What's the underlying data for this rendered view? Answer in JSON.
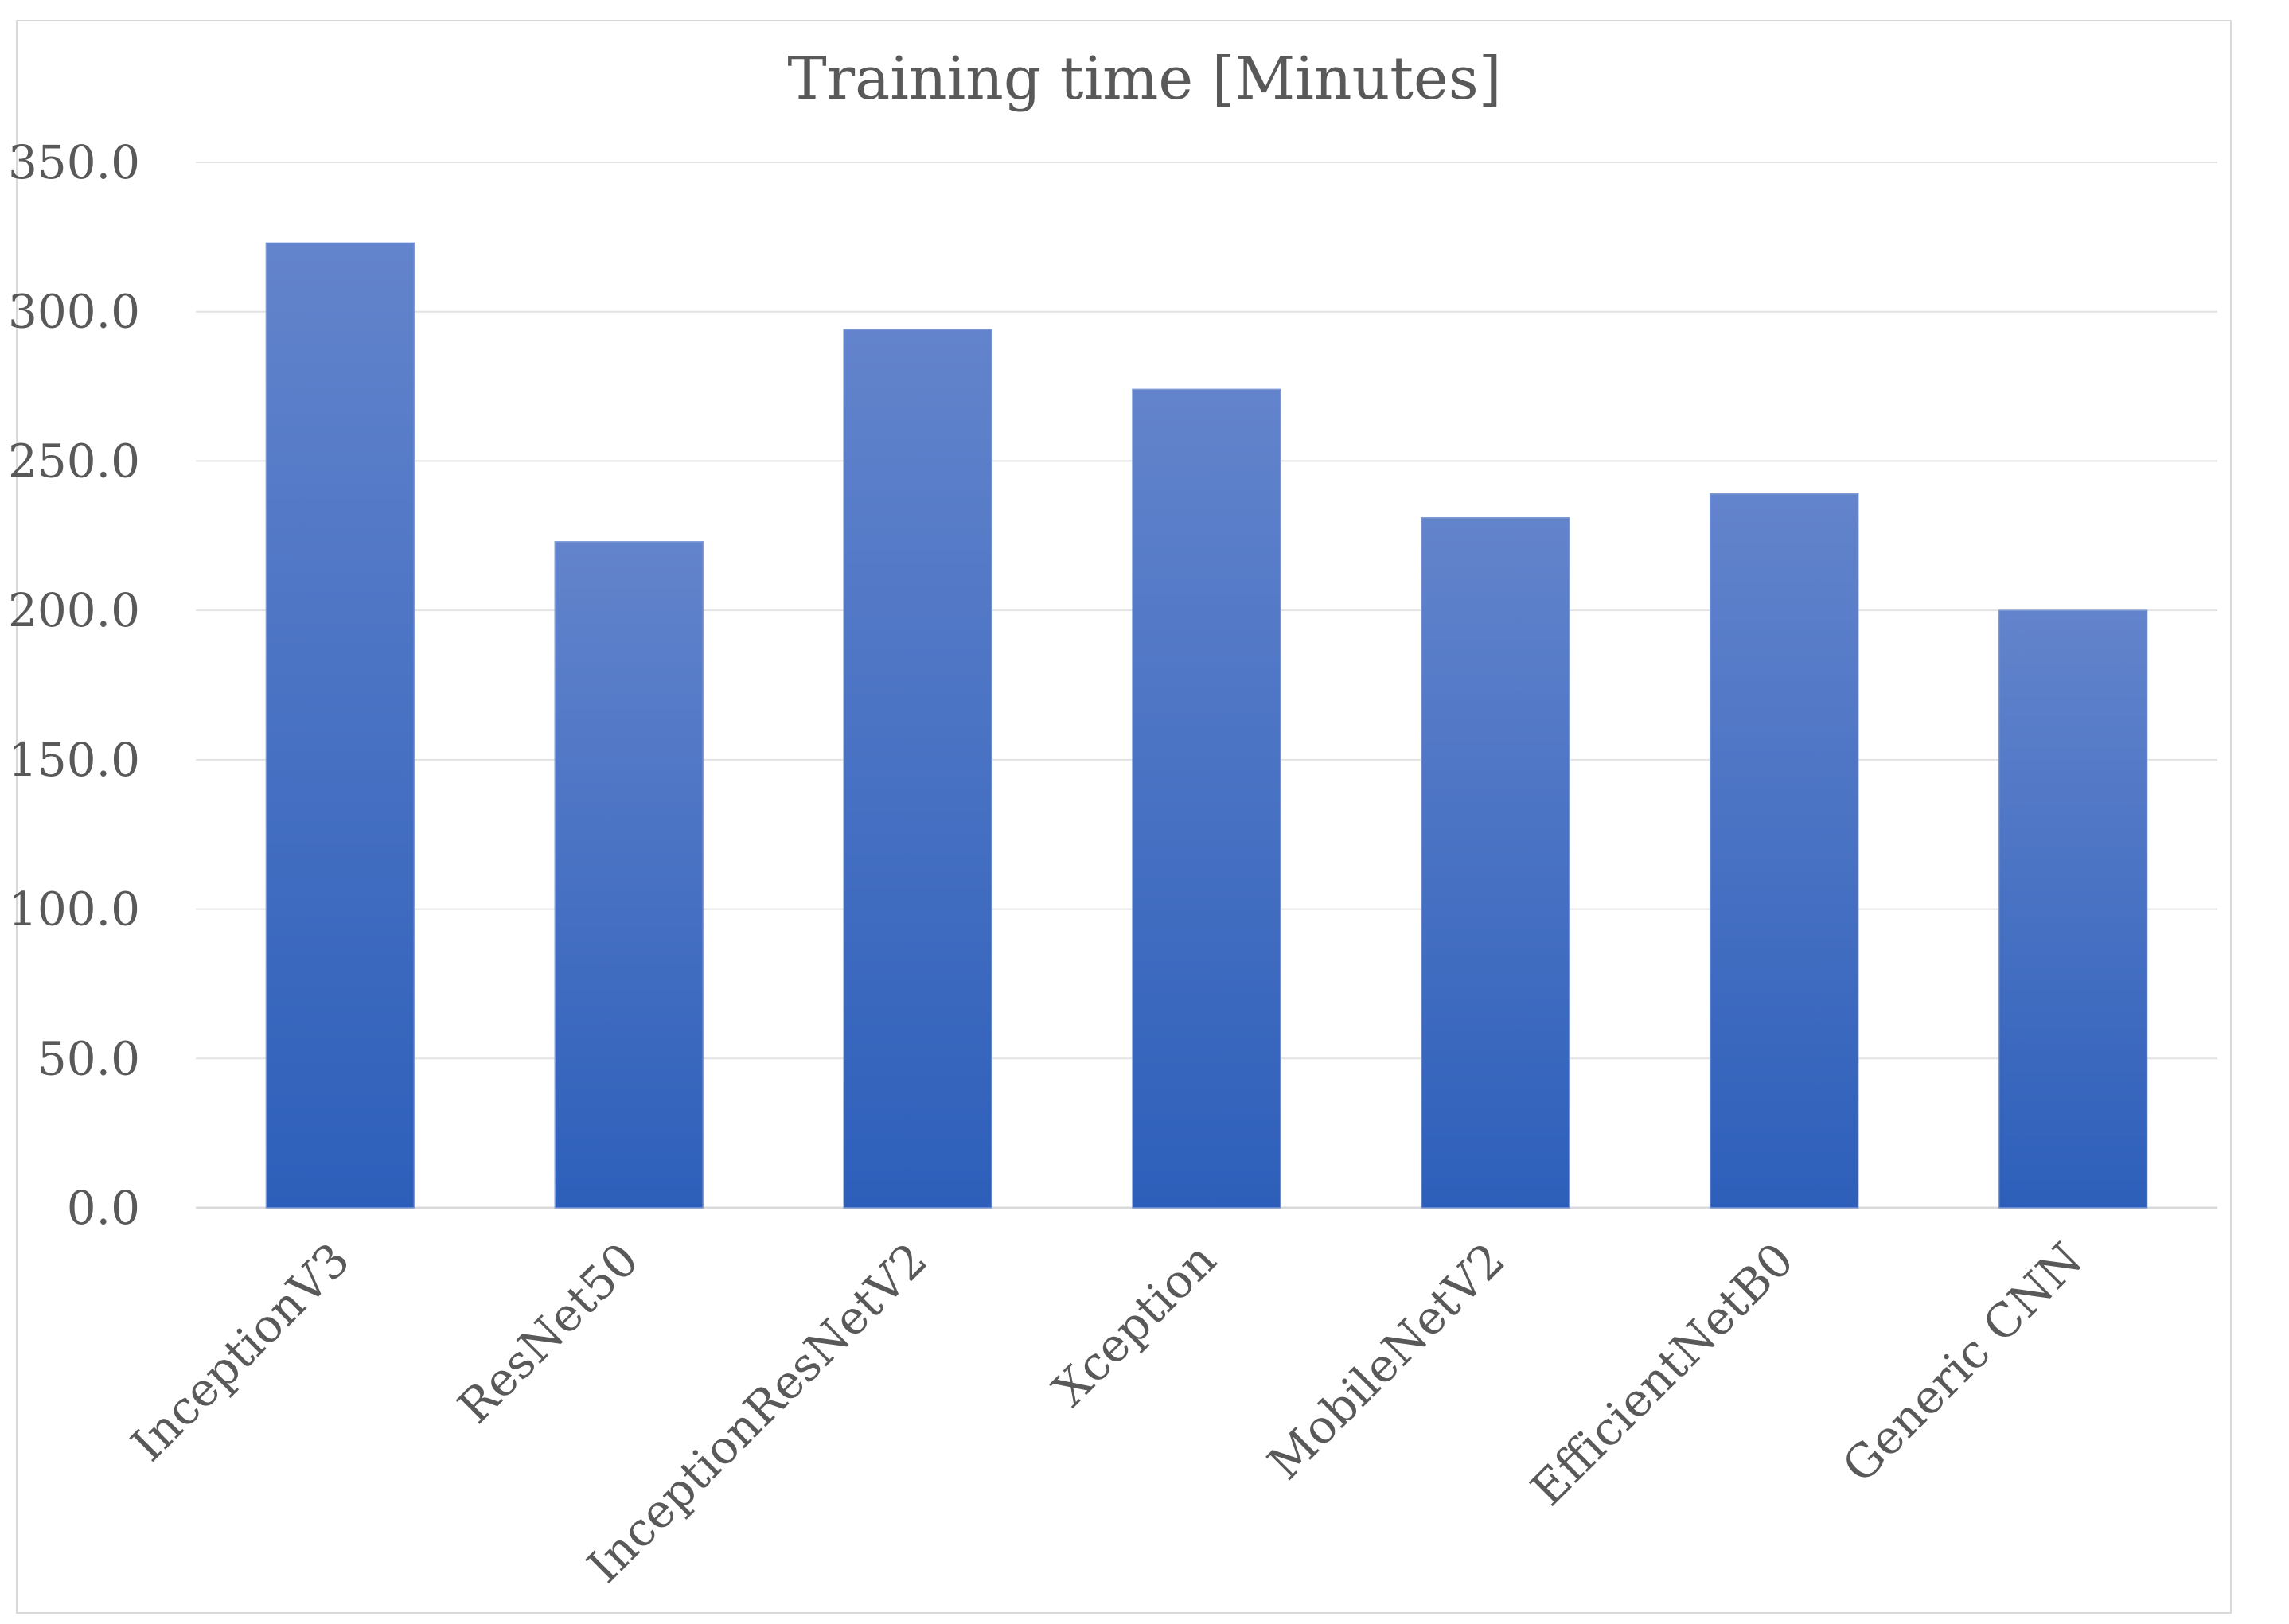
{
  "chart_data": {
    "type": "bar",
    "title": "Training time [Minutes]",
    "xlabel": "",
    "ylabel": "",
    "categories": [
      "InceptionV3",
      "ResNet50",
      "InceptionResNetV2",
      "Xception",
      "MobileNetV2",
      "EfficientNetB0",
      "Generic CNN"
    ],
    "values": [
      323,
      223,
      294,
      274,
      231,
      239,
      200
    ],
    "ylim": [
      0,
      350
    ],
    "yticks": [
      "0.0",
      "50.0",
      "100.0",
      "150.0",
      "200.0",
      "250.0",
      "300.0",
      "350.0"
    ],
    "grid": true,
    "legend": "none",
    "colors": {
      "bar_top": "#6384cc",
      "bar_bottom": "#2d5fba",
      "grid": "#e3e3e3",
      "axis": "#d9d9d9",
      "text": "#595959"
    }
  }
}
